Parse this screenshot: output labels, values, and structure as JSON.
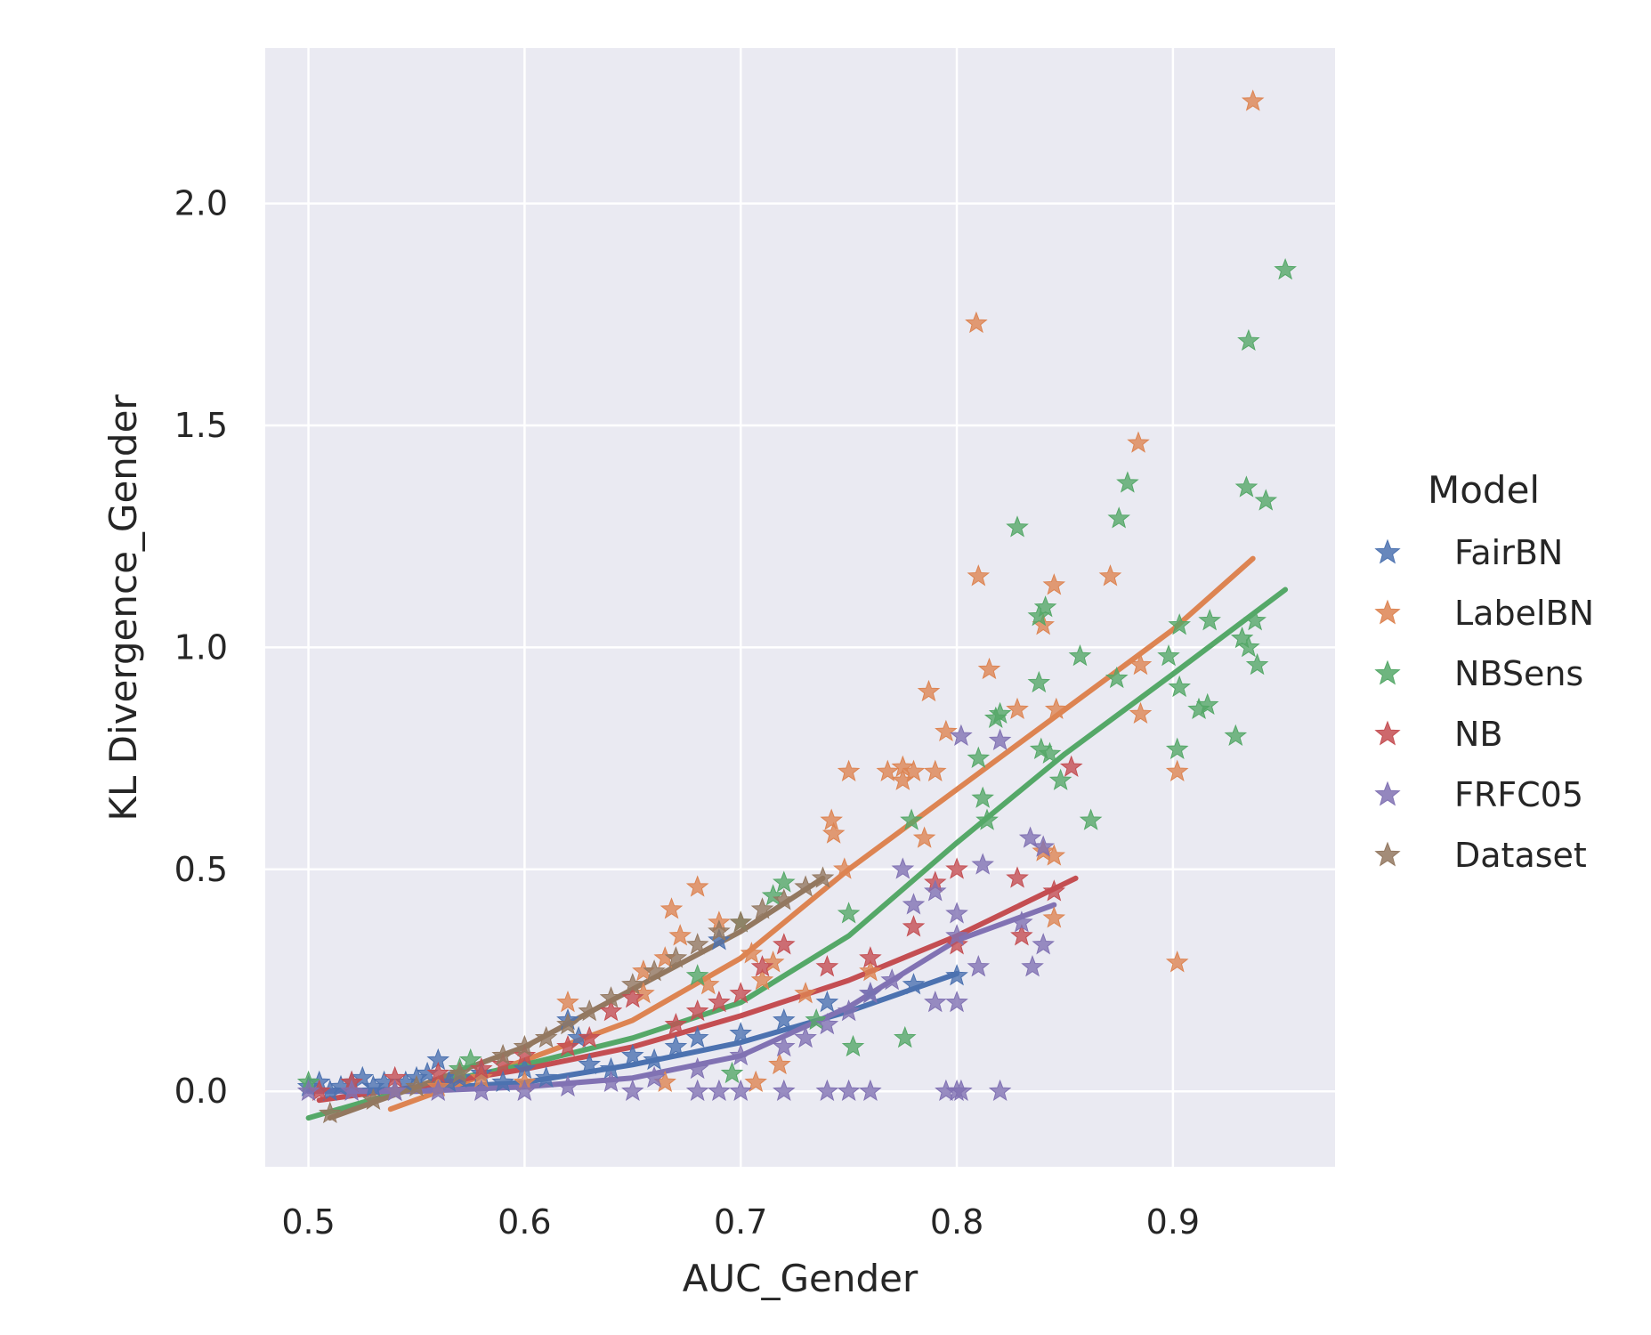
{
  "chart_data": {
    "type": "scatter",
    "xlabel": "AUC_Gender",
    "ylabel": "KL Divergence_Gender",
    "xlim": [
      0.48,
      0.975
    ],
    "ylim": [
      -0.17,
      2.35
    ],
    "xticks": [
      0.5,
      0.6,
      0.7,
      0.8,
      0.9
    ],
    "xtick_labels": [
      "0.5",
      "0.6",
      "0.7",
      "0.8",
      "0.9"
    ],
    "yticks": [
      0.0,
      0.5,
      1.0,
      1.5,
      2.0
    ],
    "ytick_labels": [
      "0.0",
      "0.5",
      "1.0",
      "1.5",
      "2.0"
    ],
    "grid": true,
    "marker": "star",
    "legend": {
      "title": "Model",
      "placement": "right"
    },
    "series": [
      {
        "name": "FairBN",
        "color": "#4c72b0",
        "points": [
          [
            0.5,
            0.01
          ],
          [
            0.505,
            0.02
          ],
          [
            0.51,
            0.0
          ],
          [
            0.515,
            0.01
          ],
          [
            0.52,
            0.02
          ],
          [
            0.525,
            0.03
          ],
          [
            0.53,
            0.01
          ],
          [
            0.535,
            0.02
          ],
          [
            0.54,
            0.0
          ],
          [
            0.545,
            0.02
          ],
          [
            0.55,
            0.03
          ],
          [
            0.555,
            0.04
          ],
          [
            0.56,
            0.07
          ],
          [
            0.565,
            0.02
          ],
          [
            0.57,
            0.03
          ],
          [
            0.58,
            0.04
          ],
          [
            0.59,
            0.02
          ],
          [
            0.6,
            0.05
          ],
          [
            0.61,
            0.03
          ],
          [
            0.62,
            0.16
          ],
          [
            0.625,
            0.12
          ],
          [
            0.63,
            0.06
          ],
          [
            0.64,
            0.05
          ],
          [
            0.65,
            0.08
          ],
          [
            0.66,
            0.07
          ],
          [
            0.67,
            0.1
          ],
          [
            0.68,
            0.12
          ],
          [
            0.69,
            0.34
          ],
          [
            0.7,
            0.13
          ],
          [
            0.72,
            0.16
          ],
          [
            0.74,
            0.2
          ],
          [
            0.76,
            0.22
          ],
          [
            0.78,
            0.24
          ],
          [
            0.8,
            0.26
          ]
        ],
        "trend": [
          [
            0.5,
            0.0
          ],
          [
            0.55,
            0.005
          ],
          [
            0.6,
            0.02
          ],
          [
            0.65,
            0.06
          ],
          [
            0.7,
            0.11
          ],
          [
            0.75,
            0.18
          ],
          [
            0.8,
            0.265
          ]
        ]
      },
      {
        "name": "LabelBN",
        "color": "#dd8452",
        "points": [
          [
            0.937,
            2.23
          ],
          [
            0.809,
            1.73
          ],
          [
            0.884,
            1.46
          ],
          [
            0.81,
            1.16
          ],
          [
            0.871,
            1.16
          ],
          [
            0.845,
            1.14
          ],
          [
            0.84,
            1.05
          ],
          [
            0.885,
            0.96
          ],
          [
            0.815,
            0.95
          ],
          [
            0.787,
            0.9
          ],
          [
            0.828,
            0.86
          ],
          [
            0.846,
            0.86
          ],
          [
            0.885,
            0.85
          ],
          [
            0.795,
            0.81
          ],
          [
            0.79,
            0.72
          ],
          [
            0.768,
            0.72
          ],
          [
            0.775,
            0.73
          ],
          [
            0.78,
            0.72
          ],
          [
            0.75,
            0.72
          ],
          [
            0.775,
            0.7
          ],
          [
            0.902,
            0.72
          ],
          [
            0.742,
            0.61
          ],
          [
            0.743,
            0.58
          ],
          [
            0.84,
            0.54
          ],
          [
            0.845,
            0.53
          ],
          [
            0.785,
            0.57
          ],
          [
            0.748,
            0.5
          ],
          [
            0.68,
            0.46
          ],
          [
            0.668,
            0.41
          ],
          [
            0.69,
            0.38
          ],
          [
            0.672,
            0.35
          ],
          [
            0.705,
            0.31
          ],
          [
            0.715,
            0.29
          ],
          [
            0.655,
            0.27
          ],
          [
            0.62,
            0.2
          ],
          [
            0.655,
            0.22
          ],
          [
            0.665,
            0.3
          ],
          [
            0.685,
            0.24
          ],
          [
            0.71,
            0.25
          ],
          [
            0.73,
            0.22
          ],
          [
            0.76,
            0.27
          ],
          [
            0.845,
            0.39
          ],
          [
            0.902,
            0.29
          ],
          [
            0.718,
            0.06
          ],
          [
            0.707,
            0.02
          ],
          [
            0.665,
            0.02
          ],
          [
            0.6,
            0.02
          ],
          [
            0.58,
            0.03
          ],
          [
            0.56,
            0.01
          ],
          [
            0.54,
            0.0
          ]
        ],
        "trend": [
          [
            0.538,
            -0.04
          ],
          [
            0.6,
            0.07
          ],
          [
            0.65,
            0.16
          ],
          [
            0.7,
            0.3
          ],
          [
            0.75,
            0.5
          ],
          [
            0.8,
            0.68
          ],
          [
            0.85,
            0.86
          ],
          [
            0.9,
            1.04
          ],
          [
            0.937,
            1.2
          ]
        ]
      },
      {
        "name": "NBSens",
        "color": "#55a868",
        "points": [
          [
            0.952,
            1.85
          ],
          [
            0.935,
            1.69
          ],
          [
            0.934,
            1.36
          ],
          [
            0.943,
            1.33
          ],
          [
            0.879,
            1.37
          ],
          [
            0.875,
            1.29
          ],
          [
            0.828,
            1.27
          ],
          [
            0.841,
            1.09
          ],
          [
            0.838,
            1.07
          ],
          [
            0.917,
            1.06
          ],
          [
            0.903,
            1.05
          ],
          [
            0.938,
            1.06
          ],
          [
            0.932,
            1.02
          ],
          [
            0.935,
            1.0
          ],
          [
            0.939,
            0.96
          ],
          [
            0.857,
            0.98
          ],
          [
            0.898,
            0.98
          ],
          [
            0.874,
            0.93
          ],
          [
            0.838,
            0.92
          ],
          [
            0.903,
            0.91
          ],
          [
            0.916,
            0.87
          ],
          [
            0.912,
            0.86
          ],
          [
            0.818,
            0.84
          ],
          [
            0.82,
            0.85
          ],
          [
            0.929,
            0.8
          ],
          [
            0.902,
            0.77
          ],
          [
            0.839,
            0.77
          ],
          [
            0.843,
            0.76
          ],
          [
            0.81,
            0.75
          ],
          [
            0.848,
            0.7
          ],
          [
            0.812,
            0.66
          ],
          [
            0.814,
            0.61
          ],
          [
            0.862,
            0.61
          ],
          [
            0.779,
            0.61
          ],
          [
            0.72,
            0.47
          ],
          [
            0.715,
            0.44
          ],
          [
            0.75,
            0.4
          ],
          [
            0.7,
            0.38
          ],
          [
            0.68,
            0.26
          ],
          [
            0.735,
            0.16
          ],
          [
            0.752,
            0.1
          ],
          [
            0.776,
            0.12
          ],
          [
            0.696,
            0.04
          ],
          [
            0.5,
            0.02
          ],
          [
            0.57,
            0.05
          ],
          [
            0.575,
            0.07
          ]
        ],
        "trend": [
          [
            0.5,
            -0.06
          ],
          [
            0.55,
            0.01
          ],
          [
            0.6,
            0.06
          ],
          [
            0.65,
            0.12
          ],
          [
            0.7,
            0.2
          ],
          [
            0.75,
            0.35
          ],
          [
            0.8,
            0.56
          ],
          [
            0.85,
            0.76
          ],
          [
            0.9,
            0.94
          ],
          [
            0.952,
            1.13
          ]
        ]
      },
      {
        "name": "NB",
        "color": "#c44e52",
        "points": [
          [
            0.853,
            0.73
          ],
          [
            0.8,
            0.5
          ],
          [
            0.828,
            0.48
          ],
          [
            0.83,
            0.35
          ],
          [
            0.845,
            0.45
          ],
          [
            0.79,
            0.47
          ],
          [
            0.8,
            0.33
          ],
          [
            0.78,
            0.37
          ],
          [
            0.76,
            0.3
          ],
          [
            0.74,
            0.28
          ],
          [
            0.72,
            0.33
          ],
          [
            0.71,
            0.28
          ],
          [
            0.7,
            0.22
          ],
          [
            0.69,
            0.2
          ],
          [
            0.68,
            0.18
          ],
          [
            0.67,
            0.15
          ],
          [
            0.65,
            0.21
          ],
          [
            0.64,
            0.18
          ],
          [
            0.63,
            0.12
          ],
          [
            0.62,
            0.1
          ],
          [
            0.6,
            0.08
          ],
          [
            0.59,
            0.06
          ],
          [
            0.58,
            0.05
          ],
          [
            0.56,
            0.04
          ],
          [
            0.54,
            0.03
          ],
          [
            0.52,
            0.02
          ],
          [
            0.505,
            0.0
          ]
        ],
        "trend": [
          [
            0.505,
            -0.02
          ],
          [
            0.55,
            0.01
          ],
          [
            0.6,
            0.05
          ],
          [
            0.65,
            0.1
          ],
          [
            0.7,
            0.17
          ],
          [
            0.75,
            0.25
          ],
          [
            0.8,
            0.35
          ],
          [
            0.855,
            0.48
          ]
        ]
      },
      {
        "name": "FRFC05",
        "color": "#8172b3",
        "points": [
          [
            0.802,
            0.8
          ],
          [
            0.82,
            0.79
          ],
          [
            0.834,
            0.57
          ],
          [
            0.84,
            0.55
          ],
          [
            0.812,
            0.51
          ],
          [
            0.775,
            0.5
          ],
          [
            0.79,
            0.45
          ],
          [
            0.78,
            0.42
          ],
          [
            0.8,
            0.4
          ],
          [
            0.83,
            0.38
          ],
          [
            0.8,
            0.35
          ],
          [
            0.84,
            0.33
          ],
          [
            0.81,
            0.28
          ],
          [
            0.835,
            0.28
          ],
          [
            0.8,
            0.2
          ],
          [
            0.79,
            0.2
          ],
          [
            0.77,
            0.25
          ],
          [
            0.76,
            0.22
          ],
          [
            0.75,
            0.18
          ],
          [
            0.74,
            0.15
          ],
          [
            0.73,
            0.12
          ],
          [
            0.72,
            0.1
          ],
          [
            0.7,
            0.08
          ],
          [
            0.68,
            0.05
          ],
          [
            0.66,
            0.03
          ],
          [
            0.64,
            0.02
          ],
          [
            0.62,
            0.01
          ],
          [
            0.6,
            0.0
          ],
          [
            0.58,
            0.0
          ],
          [
            0.56,
            0.0
          ],
          [
            0.54,
            0.0
          ],
          [
            0.52,
            0.0
          ],
          [
            0.5,
            0.0
          ],
          [
            0.65,
            0.0
          ],
          [
            0.68,
            0.0
          ],
          [
            0.69,
            0.0
          ],
          [
            0.7,
            0.0
          ],
          [
            0.72,
            0.0
          ],
          [
            0.74,
            0.0
          ],
          [
            0.75,
            0.0
          ],
          [
            0.76,
            0.0
          ],
          [
            0.795,
            0.0
          ],
          [
            0.8,
            0.0
          ],
          [
            0.802,
            0.0
          ],
          [
            0.82,
            0.0
          ]
        ],
        "trend": [
          [
            0.5,
            0.0
          ],
          [
            0.55,
            0.0
          ],
          [
            0.6,
            0.01
          ],
          [
            0.65,
            0.03
          ],
          [
            0.7,
            0.08
          ],
          [
            0.75,
            0.19
          ],
          [
            0.8,
            0.34
          ],
          [
            0.845,
            0.42
          ]
        ]
      },
      {
        "name": "Dataset",
        "color": "#937860",
        "points": [
          [
            0.51,
            -0.05
          ],
          [
            0.53,
            -0.02
          ],
          [
            0.55,
            0.01
          ],
          [
            0.57,
            0.04
          ],
          [
            0.59,
            0.08
          ],
          [
            0.6,
            0.1
          ],
          [
            0.61,
            0.12
          ],
          [
            0.62,
            0.15
          ],
          [
            0.63,
            0.18
          ],
          [
            0.64,
            0.21
          ],
          [
            0.65,
            0.24
          ],
          [
            0.66,
            0.27
          ],
          [
            0.67,
            0.3
          ],
          [
            0.68,
            0.33
          ],
          [
            0.69,
            0.36
          ],
          [
            0.7,
            0.38
          ],
          [
            0.71,
            0.41
          ],
          [
            0.72,
            0.43
          ],
          [
            0.73,
            0.46
          ],
          [
            0.738,
            0.48
          ]
        ],
        "trend": [
          [
            0.51,
            -0.06
          ],
          [
            0.55,
            0.01
          ],
          [
            0.6,
            0.1
          ],
          [
            0.65,
            0.23
          ],
          [
            0.7,
            0.36
          ],
          [
            0.738,
            0.48
          ]
        ]
      }
    ]
  }
}
